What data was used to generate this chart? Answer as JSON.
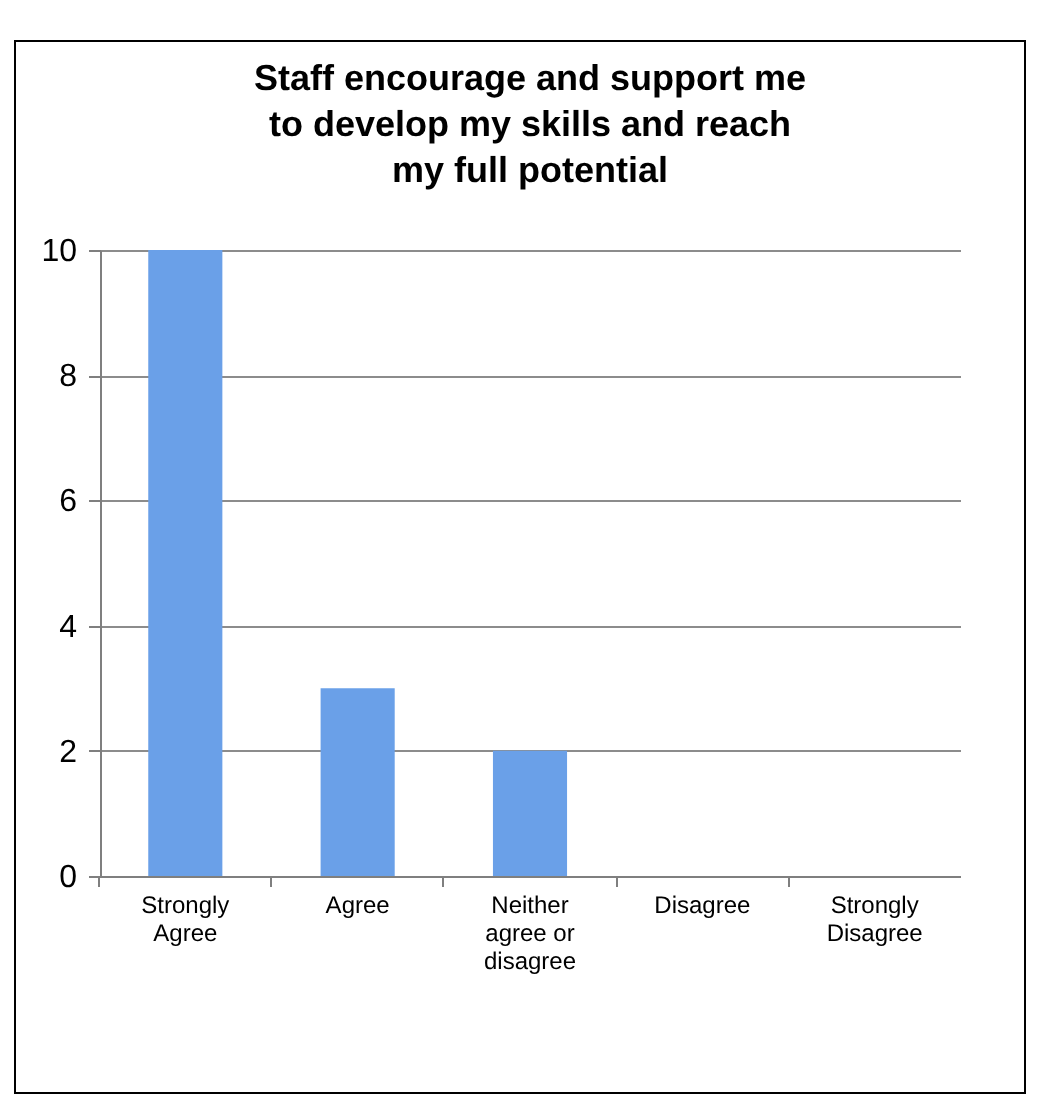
{
  "chart_data": {
    "type": "bar",
    "title": "Staff encourage and support me to develop my skills and reach my full potential",
    "categories": [
      "Strongly Agree",
      "Agree",
      "Neither agree or disagree",
      "Disagree",
      "Strongly Disagree"
    ],
    "values": [
      10,
      3,
      2,
      0,
      0
    ],
    "color": "#6aa0e8",
    "ylim": [
      0,
      10
    ],
    "yticks": [
      0,
      2,
      4,
      6,
      8,
      10
    ],
    "grid": "y"
  }
}
